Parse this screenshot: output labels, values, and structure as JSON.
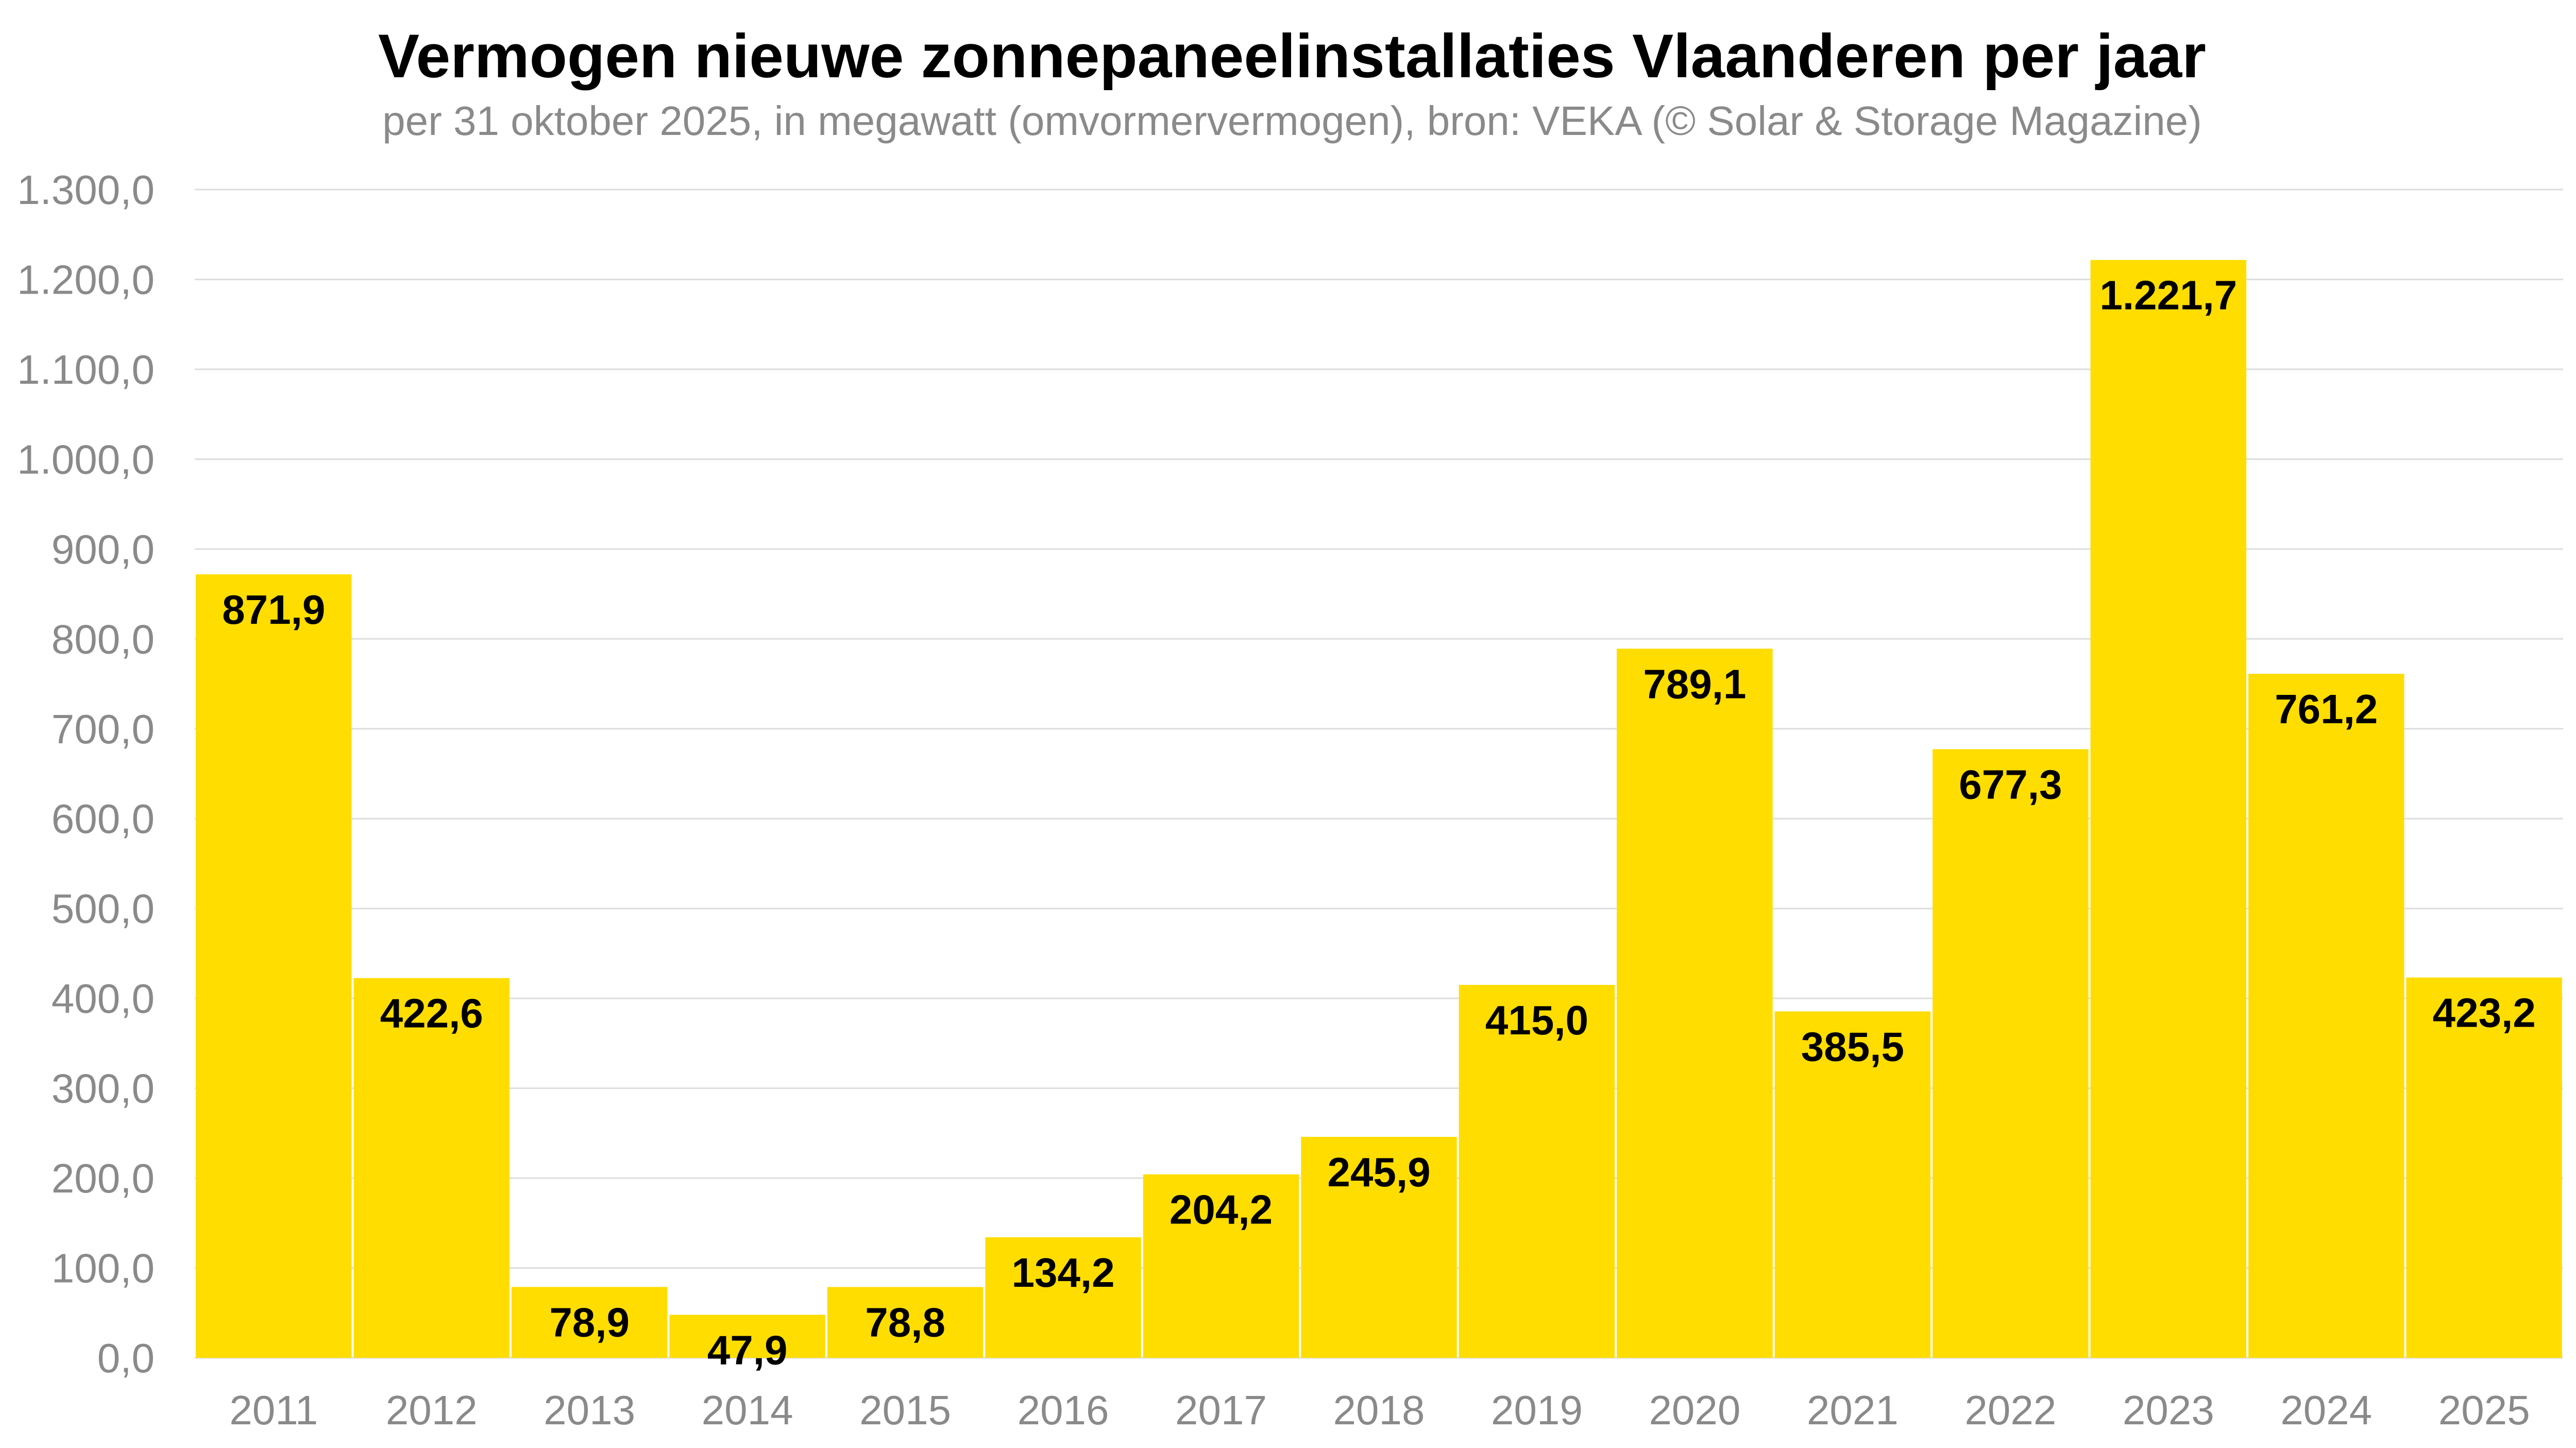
{
  "chart_data": {
    "type": "bar",
    "title": "Vermogen nieuwe zonnepaneelinstallaties Vlaanderen per jaar",
    "subtitle": "per 31 oktober 2025, in megawatt (omvormervermogen), bron: VEKA (© Solar & Storage Magazine)",
    "xlabel": "",
    "ylabel": "",
    "categories": [
      "2011",
      "2012",
      "2013",
      "2014",
      "2015",
      "2016",
      "2017",
      "2018",
      "2019",
      "2020",
      "2021",
      "2022",
      "2023",
      "2024",
      "2025"
    ],
    "values": [
      871.9,
      422.6,
      78.9,
      47.9,
      78.8,
      134.2,
      204.2,
      245.9,
      415.0,
      789.1,
      385.5,
      677.3,
      1221.7,
      761.2,
      423.2
    ],
    "value_labels": [
      "871,9",
      "422,6",
      "78,9",
      "47,9",
      "78,8",
      "134,2",
      "204,2",
      "245,9",
      "415,0",
      "789,1",
      "385,5",
      "677,3",
      "1.221,7",
      "761,2",
      "423,2"
    ],
    "ylim": [
      0,
      1300
    ],
    "yticks": [
      0,
      100,
      200,
      300,
      400,
      500,
      600,
      700,
      800,
      900,
      1000,
      1100,
      1200,
      1300
    ],
    "ytick_labels": [
      "0,0",
      "100,0",
      "200,0",
      "300,0",
      "400,0",
      "500,0",
      "600,0",
      "700,0",
      "800,0",
      "900,0",
      "1.000,0",
      "1.100,0",
      "1.200,0",
      "1.300,0"
    ],
    "grid": true,
    "legend": "none",
    "bar_color": "#FFDD00",
    "grid_color": "#dddddd"
  }
}
